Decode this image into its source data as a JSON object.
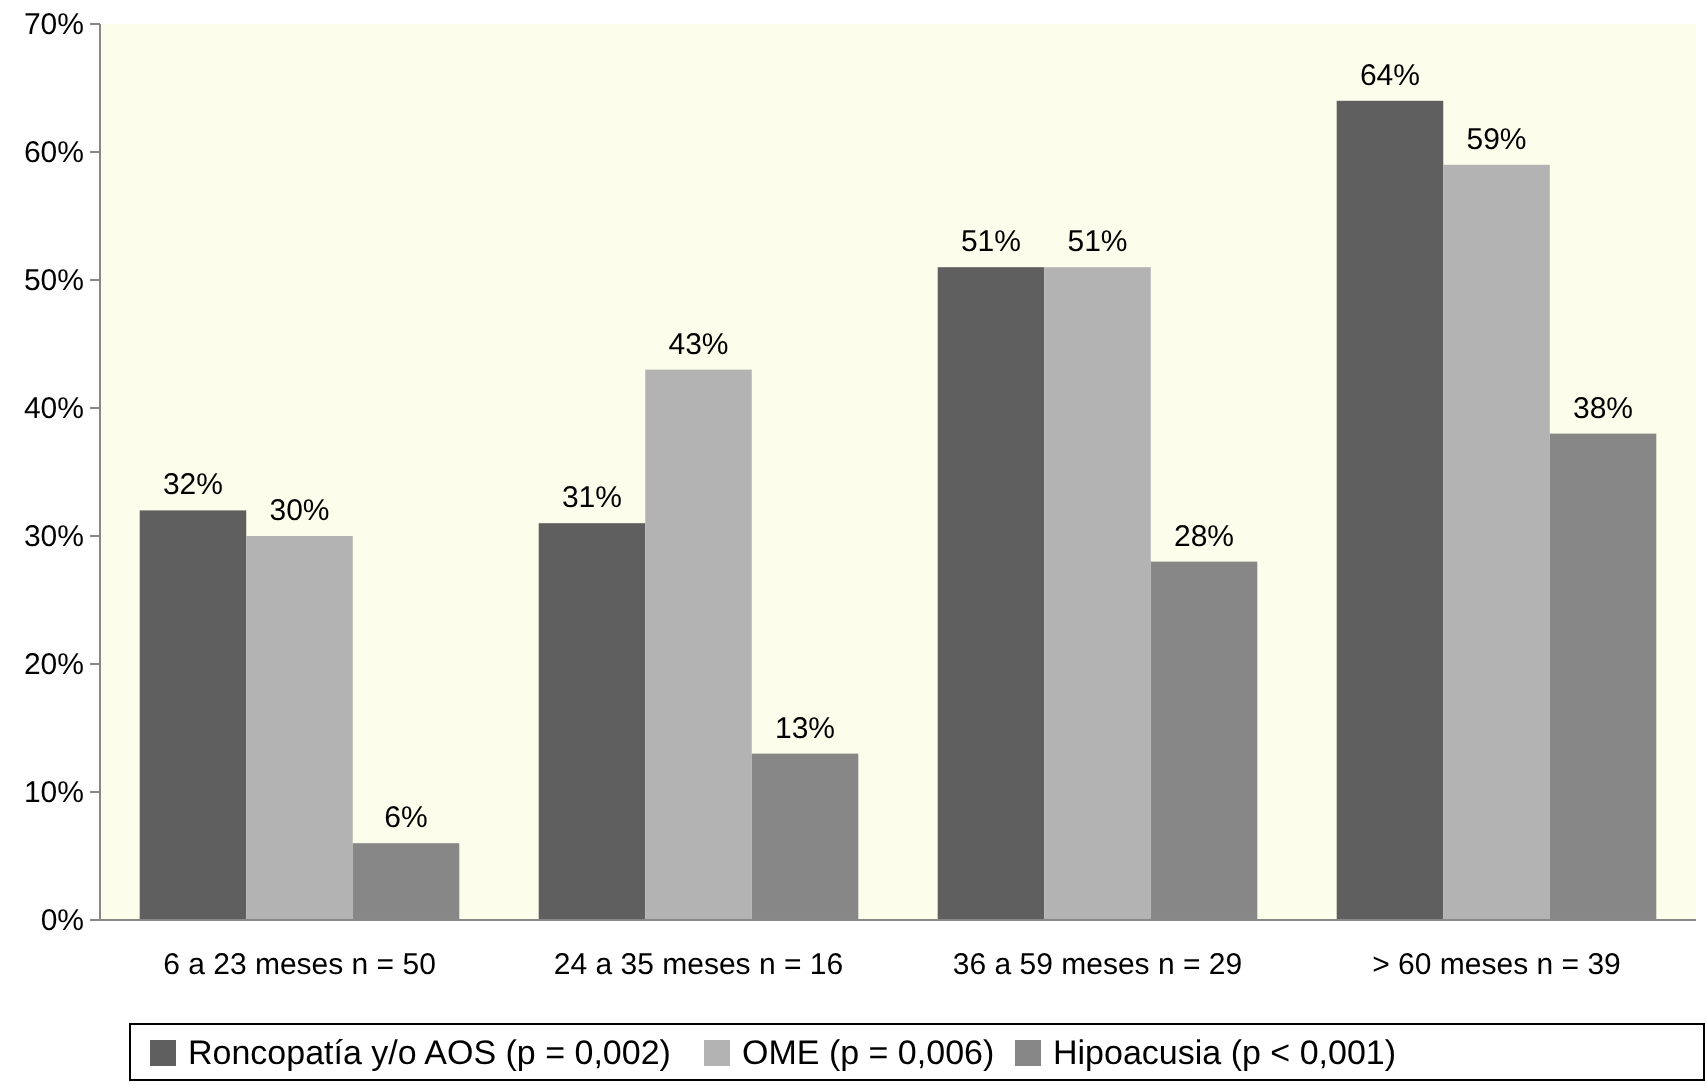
{
  "chart_data": {
    "type": "bar",
    "categories": [
      "6 a 23 meses n = 50",
      "24 a 35 meses n = 16",
      "36 a 59 meses n = 29",
      "> 60 meses n = 39"
    ],
    "series": [
      {
        "name": "Roncopatía y/o AOS (p = 0,002)",
        "color": "#5f5f5f",
        "values": [
          32,
          31,
          51,
          64
        ],
        "value_labels": [
          "32%",
          "31%",
          "51%",
          "64%"
        ]
      },
      {
        "name": "OME (p = 0,006)",
        "color": "#b3b3b3",
        "values": [
          30,
          43,
          51,
          59
        ],
        "value_labels": [
          "30%",
          "43%",
          "51%",
          "59%"
        ]
      },
      {
        "name": "Hipoacusia (p < 0,001)",
        "color": "#878787",
        "values": [
          6,
          13,
          28,
          38
        ],
        "value_labels": [
          "6%",
          "13%",
          "28%",
          "38%"
        ]
      }
    ],
    "ylim": [
      0,
      70
    ],
    "yticks": [
      {
        "value": 0,
        "label": "0%"
      },
      {
        "value": 10,
        "label": "10%"
      },
      {
        "value": 20,
        "label": "20%"
      },
      {
        "value": 30,
        "label": "30%"
      },
      {
        "value": 40,
        "label": "40%"
      },
      {
        "value": 50,
        "label": "50%"
      },
      {
        "value": 60,
        "label": "60%"
      },
      {
        "value": 70,
        "label": "70%"
      }
    ],
    "grid": false,
    "legend": "bottom"
  }
}
